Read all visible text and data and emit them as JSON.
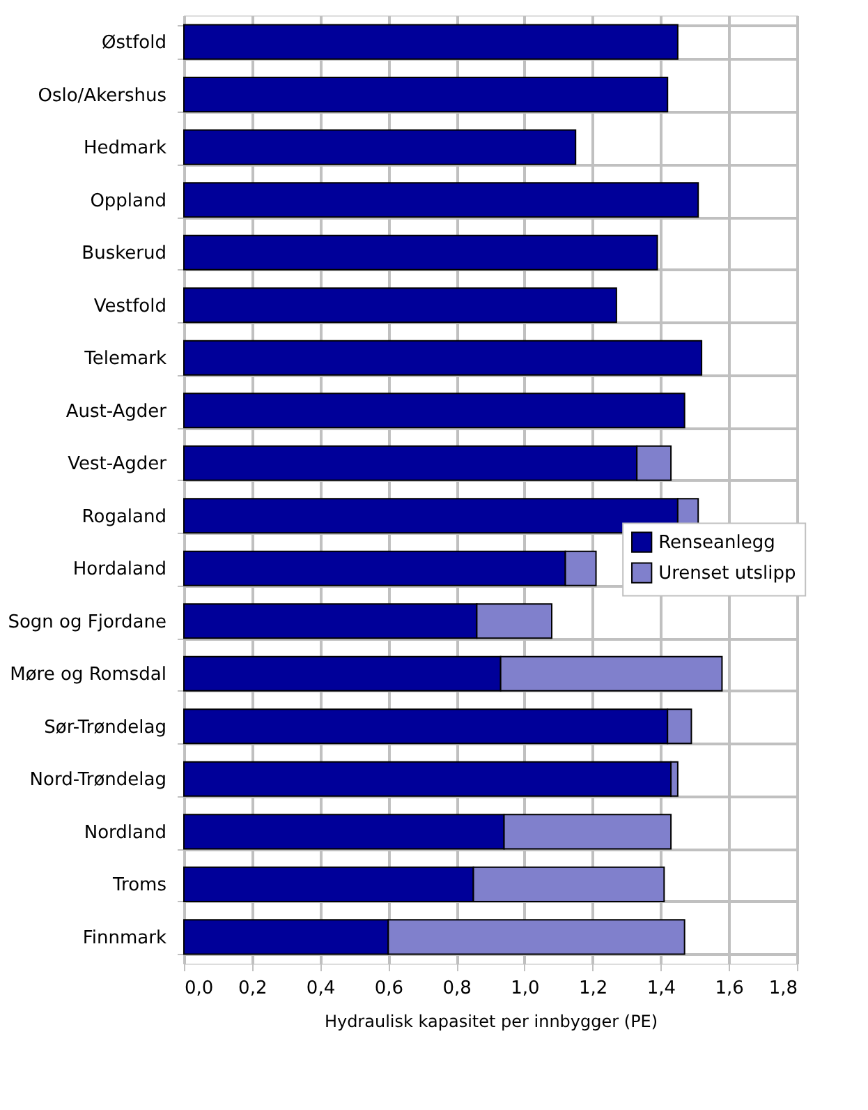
{
  "chart_data": {
    "type": "bar",
    "orientation": "horizontal",
    "stacked": true,
    "xlabel": "Hydraulisk kapasitet per innbygger (PE)",
    "categories": [
      "Østfold",
      "Oslo/Akershus",
      "Hedmark",
      "Oppland",
      "Buskerud",
      "Vestfold",
      "Telemark",
      "Aust-Agder",
      "Vest-Agder",
      "Rogaland",
      "Hordaland",
      "Sogn og Fjordane",
      "Møre og Romsdal",
      "Sør-Trøndelag",
      "Nord-Trøndelag",
      "Nordland",
      "Troms",
      "Finnmark"
    ],
    "series": [
      {
        "name": "Renseanlegg",
        "color": "#000099",
        "values": [
          1.45,
          1.42,
          1.15,
          1.51,
          1.39,
          1.27,
          1.52,
          1.47,
          1.33,
          1.45,
          1.12,
          0.86,
          0.93,
          1.42,
          1.43,
          0.94,
          0.85,
          0.6
        ]
      },
      {
        "name": "Urenset utslipp",
        "color": "#8080cc",
        "values": [
          null,
          null,
          null,
          null,
          null,
          null,
          null,
          null,
          0.1,
          0.06,
          0.09,
          0.22,
          0.65,
          0.07,
          0.02,
          0.49,
          0.56,
          0.87
        ]
      }
    ],
    "xlim": [
      0,
      1.8
    ],
    "xticks": [
      {
        "value": 0,
        "label": "0,0"
      },
      {
        "value": 0.2,
        "label": "0,2"
      },
      {
        "value": 0.4,
        "label": "0,4"
      },
      {
        "value": 0.6,
        "label": "0,6"
      },
      {
        "value": 0.8,
        "label": "0,8"
      },
      {
        "value": 1.0,
        "label": "1,0"
      },
      {
        "value": 1.2,
        "label": "1,2"
      },
      {
        "value": 1.4,
        "label": "1,4"
      },
      {
        "value": 1.6,
        "label": "1,6"
      },
      {
        "value": 1.8,
        "label": "1,8"
      }
    ],
    "grid": true,
    "legend": "right"
  }
}
